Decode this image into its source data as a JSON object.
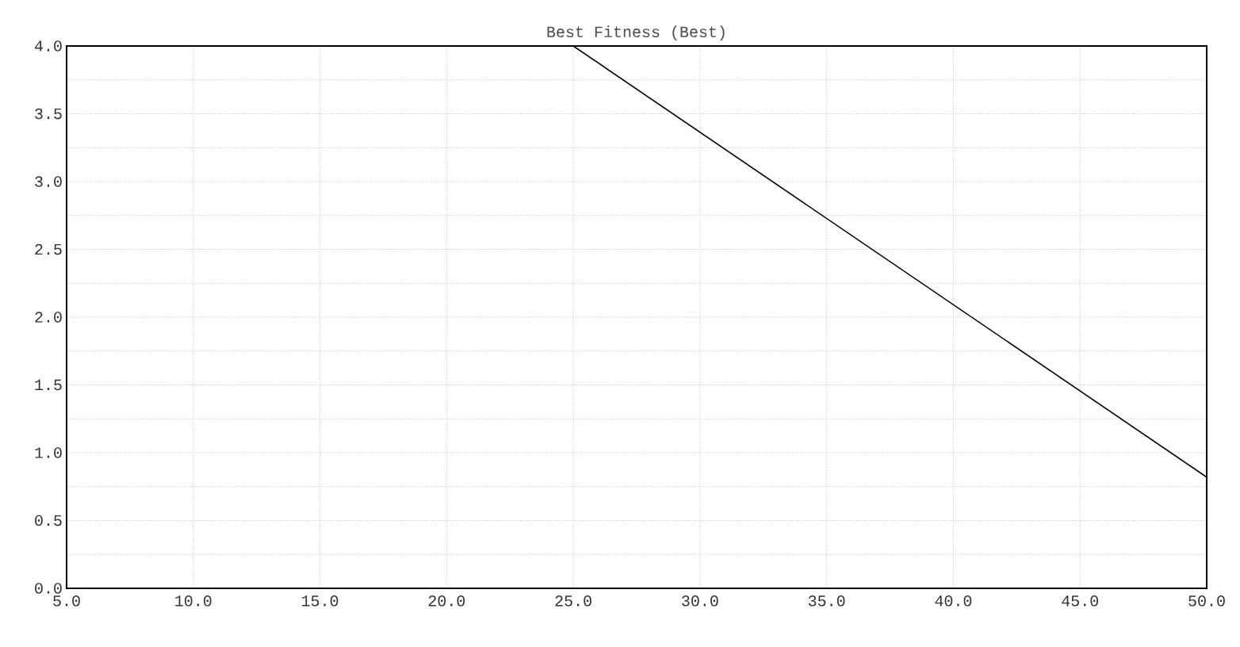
{
  "chart_data": {
    "type": "line",
    "title": "Best Fitness (Best)",
    "x": [
      25,
      50
    ],
    "series": [
      {
        "color": "#000000",
        "values": [
          4.0,
          0.82
        ]
      }
    ],
    "xlim": [
      5,
      50
    ],
    "xticks": [
      {
        "value": 5,
        "label": "5.0"
      },
      {
        "value": 10,
        "label": "10.0"
      },
      {
        "value": 15,
        "label": "15.0"
      },
      {
        "value": 20,
        "label": "20.0"
      },
      {
        "value": 25,
        "label": "25.0"
      },
      {
        "value": 30,
        "label": "30.0"
      },
      {
        "value": 35,
        "label": "35.0"
      },
      {
        "value": 40,
        "label": "40.0"
      },
      {
        "value": 45,
        "label": "45.0"
      },
      {
        "value": 50,
        "label": "50.0"
      }
    ],
    "ylim": [
      0,
      4
    ],
    "yticks": [
      {
        "value": 0,
        "label": "0.0"
      },
      {
        "value": 0.25,
        "label": null
      },
      {
        "value": 0.5,
        "label": "0.5"
      },
      {
        "value": 0.75,
        "label": null
      },
      {
        "value": 1,
        "label": "1.0"
      },
      {
        "value": 1.25,
        "label": null
      },
      {
        "value": 1.5,
        "label": "1.5"
      },
      {
        "value": 1.75,
        "label": null
      },
      {
        "value": 2,
        "label": "2.0"
      },
      {
        "value": 2.25,
        "label": null
      },
      {
        "value": 2.5,
        "label": "2.5"
      },
      {
        "value": 2.75,
        "label": null
      },
      {
        "value": 3,
        "label": "3.0"
      },
      {
        "value": 3.25,
        "label": null
      },
      {
        "value": 3.5,
        "label": "3.5"
      },
      {
        "value": 3.75,
        "label": null
      },
      {
        "value": 4,
        "label": "4.0"
      }
    ],
    "grid": true,
    "line_style": "solid",
    "marker": "none"
  }
}
